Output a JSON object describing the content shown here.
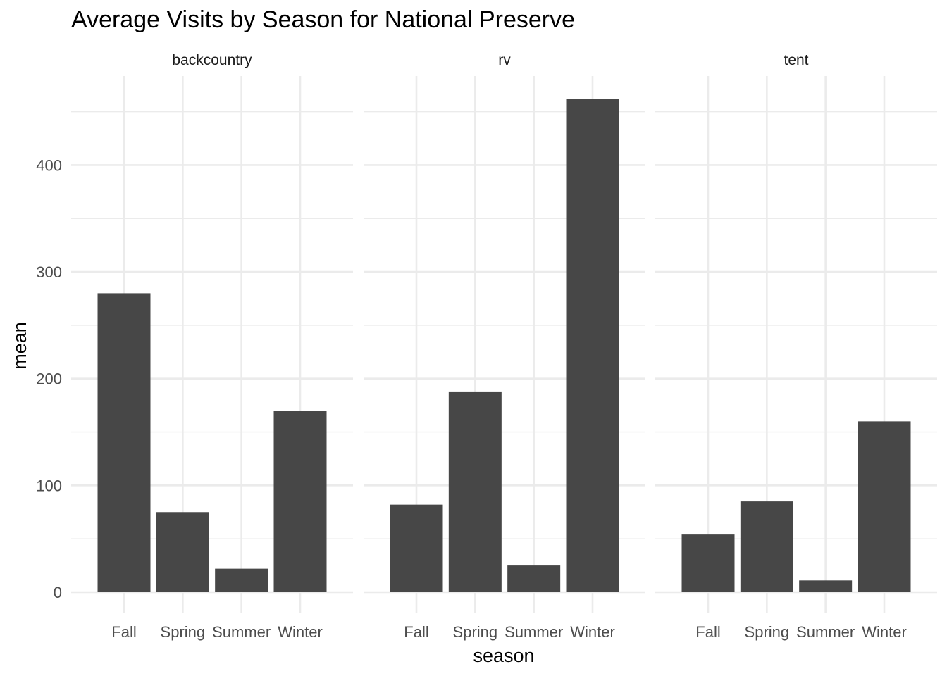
{
  "chart_data": {
    "type": "bar",
    "title": "Average Visits by Season for National Preserve",
    "xlabel": "season",
    "ylabel": "mean",
    "ylim": [
      0,
      460
    ],
    "yticks": [
      0,
      100,
      200,
      300,
      400
    ],
    "grid": true,
    "bar_color": "#474747",
    "grid_color": "#ebebeb",
    "categories": [
      "Fall",
      "Spring",
      "Summer",
      "Winter"
    ],
    "facets": [
      {
        "name": "backcountry",
        "values": [
          280,
          75,
          22,
          170
        ]
      },
      {
        "name": "rv",
        "values": [
          82,
          188,
          25,
          462
        ]
      },
      {
        "name": "tent",
        "values": [
          54,
          85,
          11,
          160
        ]
      }
    ]
  }
}
